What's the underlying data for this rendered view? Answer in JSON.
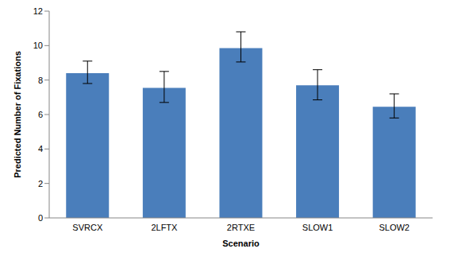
{
  "chart_data": {
    "type": "bar",
    "xlabel": "Scenario",
    "ylabel": "Predicted Number of Fixations",
    "categories": [
      "SVRCX",
      "2LFTX",
      "2RTXE",
      "SLOW1",
      "SLOW2"
    ],
    "values": [
      8.4,
      7.55,
      9.85,
      7.7,
      6.45
    ],
    "errors": [
      [
        0.6,
        0.7
      ],
      [
        0.85,
        0.95
      ],
      [
        0.8,
        0.95
      ],
      [
        0.85,
        0.9
      ],
      [
        0.65,
        0.75
      ]
    ],
    "color": "#4a7ebb",
    "ylim": [
      0,
      12
    ],
    "yticks": [
      0,
      2,
      4,
      6,
      8,
      10,
      12
    ],
    "grid": false
  }
}
